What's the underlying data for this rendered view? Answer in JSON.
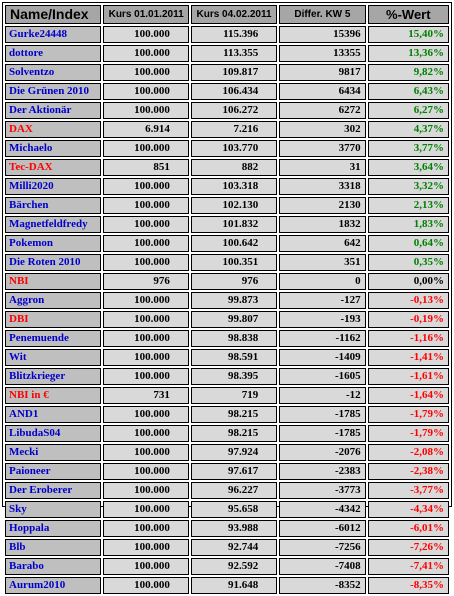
{
  "colors": {
    "header_bg": "#a6a6a6",
    "name_bg": "#bfbfbf",
    "cell_bg": "#d9d9d9",
    "blue": "#0000cc",
    "red": "#ff0000",
    "green": "#008000",
    "black": "#000000"
  },
  "headers": {
    "name": "Name/Index",
    "kurs1": "Kurs 01.01.2011",
    "kurs2": "Kurs 04.02.2011",
    "diff": "Differ. KW 5",
    "pct": "%-Wert"
  },
  "rows": [
    {
      "name": "Gurke24448",
      "kurs1": "100.000",
      "kurs2": "115.396",
      "diff": "15396",
      "pct": "15,40%",
      "name_color": "blue",
      "pct_color": "green"
    },
    {
      "name": "dottore",
      "kurs1": "100.000",
      "kurs2": "113.355",
      "diff": "13355",
      "pct": "13,36%",
      "name_color": "blue",
      "pct_color": "green"
    },
    {
      "name": "Solventzo",
      "kurs1": "100.000",
      "kurs2": "109.817",
      "diff": "9817",
      "pct": "9,82%",
      "name_color": "blue",
      "pct_color": "green"
    },
    {
      "name": "Die Grünen 2010",
      "kurs1": "100.000",
      "kurs2": "106.434",
      "diff": "6434",
      "pct": "6,43%",
      "name_color": "blue",
      "pct_color": "green"
    },
    {
      "name": "Der Aktionär",
      "kurs1": "100.000",
      "kurs2": "106.272",
      "diff": "6272",
      "pct": "6,27%",
      "name_color": "blue",
      "pct_color": "green"
    },
    {
      "name": "DAX",
      "kurs1": "6.914",
      "kurs2": "7.216",
      "diff": "302",
      "pct": "4,37%",
      "name_color": "red",
      "pct_color": "green"
    },
    {
      "name": "Michaelo",
      "kurs1": "100.000",
      "kurs2": "103.770",
      "diff": "3770",
      "pct": "3,77%",
      "name_color": "blue",
      "pct_color": "green"
    },
    {
      "name": "Tec-DAX",
      "kurs1": "851",
      "kurs2": "882",
      "diff": "31",
      "pct": "3,64%",
      "name_color": "red",
      "pct_color": "green"
    },
    {
      "name": "Milli2020",
      "kurs1": "100.000",
      "kurs2": "103.318",
      "diff": "3318",
      "pct": "3,32%",
      "name_color": "blue",
      "pct_color": "green"
    },
    {
      "name": "Bärchen",
      "kurs1": "100.000",
      "kurs2": "102.130",
      "diff": "2130",
      "pct": "2,13%",
      "name_color": "blue",
      "pct_color": "green"
    },
    {
      "name": "Magnetfeldfredy",
      "kurs1": "100.000",
      "kurs2": "101.832",
      "diff": "1832",
      "pct": "1,83%",
      "name_color": "blue",
      "pct_color": "green"
    },
    {
      "name": "Pokemon",
      "kurs1": "100.000",
      "kurs2": "100.642",
      "diff": "642",
      "pct": "0,64%",
      "name_color": "blue",
      "pct_color": "green"
    },
    {
      "name": "Die Roten 2010",
      "kurs1": "100.000",
      "kurs2": "100.351",
      "diff": "351",
      "pct": "0,35%",
      "name_color": "blue",
      "pct_color": "green"
    },
    {
      "name": "NBI",
      "kurs1": "976",
      "kurs2": "976",
      "diff": "0",
      "pct": "0,00%",
      "name_color": "red",
      "pct_color": "black"
    },
    {
      "name": "Aggron",
      "kurs1": "100.000",
      "kurs2": "99.873",
      "diff": "-127",
      "pct": "-0,13%",
      "name_color": "blue",
      "pct_color": "red"
    },
    {
      "name": "DBI",
      "kurs1": "100.000",
      "kurs2": "99.807",
      "diff": "-193",
      "pct": "-0,19%",
      "name_color": "red",
      "pct_color": "red"
    },
    {
      "name": "Penemuende",
      "kurs1": "100.000",
      "kurs2": "98.838",
      "diff": "-1162",
      "pct": "-1,16%",
      "name_color": "blue",
      "pct_color": "red"
    },
    {
      "name": "Wit",
      "kurs1": "100.000",
      "kurs2": "98.591",
      "diff": "-1409",
      "pct": "-1,41%",
      "name_color": "blue",
      "pct_color": "red"
    },
    {
      "name": "Blitzkrieger",
      "kurs1": "100.000",
      "kurs2": "98.395",
      "diff": "-1605",
      "pct": "-1,61%",
      "name_color": "blue",
      "pct_color": "red"
    },
    {
      "name": "NBI in €",
      "kurs1": "731",
      "kurs2": "719",
      "diff": "-12",
      "pct": "-1,64%",
      "name_color": "red",
      "pct_color": "red"
    },
    {
      "name": "AND1",
      "kurs1": "100.000",
      "kurs2": "98.215",
      "diff": "-1785",
      "pct": "-1,79%",
      "name_color": "blue",
      "pct_color": "red"
    },
    {
      "name": "LibudaS04",
      "kurs1": "100.000",
      "kurs2": "98.215",
      "diff": "-1785",
      "pct": "-1,79%",
      "name_color": "blue",
      "pct_color": "red"
    },
    {
      "name": "Mecki",
      "kurs1": "100.000",
      "kurs2": "97.924",
      "diff": "-2076",
      "pct": "-2,08%",
      "name_color": "blue",
      "pct_color": "red"
    },
    {
      "name": "Paioneer",
      "kurs1": "100.000",
      "kurs2": "97.617",
      "diff": "-2383",
      "pct": "-2,38%",
      "name_color": "blue",
      "pct_color": "red"
    },
    {
      "name": "Der Eroberer",
      "kurs1": "100.000",
      "kurs2": "96.227",
      "diff": "-3773",
      "pct": "-3,77%",
      "name_color": "blue",
      "pct_color": "red"
    },
    {
      "name": "Sky",
      "kurs1": "100.000",
      "kurs2": "95.658",
      "diff": "-4342",
      "pct": "-4,34%",
      "name_color": "blue",
      "pct_color": "red"
    },
    {
      "name": "Hoppala",
      "kurs1": "100.000",
      "kurs2": "93.988",
      "diff": "-6012",
      "pct": "-6,01%",
      "name_color": "blue",
      "pct_color": "red"
    },
    {
      "name": "Blb",
      "kurs1": "100.000",
      "kurs2": "92.744",
      "diff": "-7256",
      "pct": "-7,26%",
      "name_color": "blue",
      "pct_color": "red"
    },
    {
      "name": "Barabo",
      "kurs1": "100.000",
      "kurs2": "92.592",
      "diff": "-7408",
      "pct": "-7,41%",
      "name_color": "blue",
      "pct_color": "red"
    },
    {
      "name": "Aurum2010",
      "kurs1": "100.000",
      "kurs2": "91.648",
      "diff": "-8352",
      "pct": "-8,35%",
      "name_color": "blue",
      "pct_color": "red"
    }
  ]
}
